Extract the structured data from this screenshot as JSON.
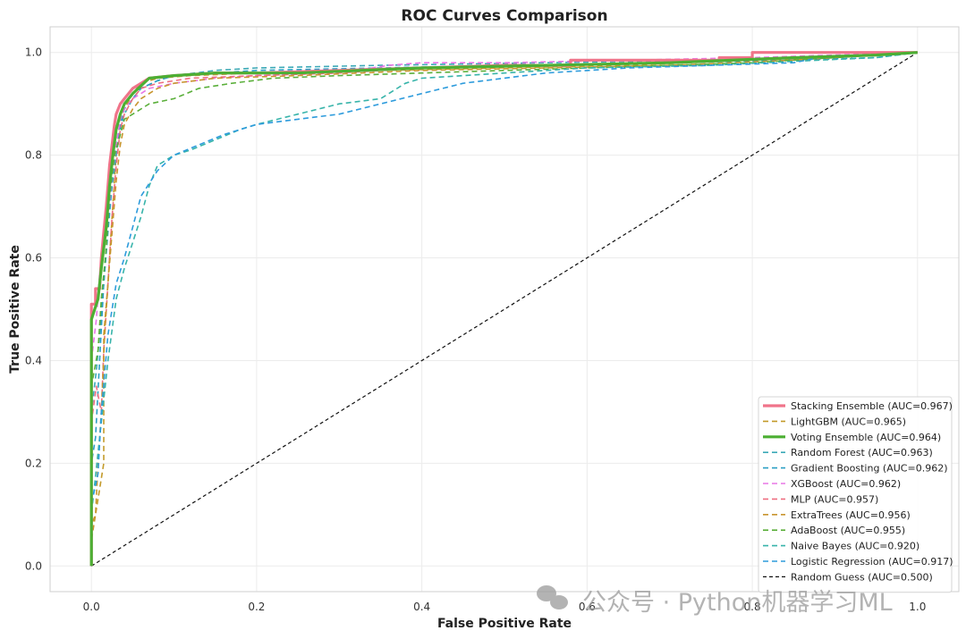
{
  "watermark": "公众号 · Python机器学习ML",
  "chart_data": {
    "type": "line",
    "title": "ROC Curves Comparison",
    "xlabel": "False Positive Rate",
    "ylabel": "True Positive Rate",
    "xlim": [
      -0.05,
      1.05
    ],
    "ylim": [
      -0.05,
      1.05
    ],
    "xticks": [
      0.0,
      0.2,
      0.4,
      0.6,
      0.8,
      1.0
    ],
    "yticks": [
      0.0,
      0.2,
      0.4,
      0.6,
      0.8,
      1.0
    ],
    "grid": true,
    "legend_position": "lower right",
    "series": [
      {
        "name": "Stacking Ensemble (AUC=0.967)",
        "color": "#f0748a",
        "style": "solid",
        "width": 3.2,
        "points": [
          [
            0,
            0
          ],
          [
            0,
            0.51
          ],
          [
            0.005,
            0.51
          ],
          [
            0.005,
            0.54
          ],
          [
            0.01,
            0.54
          ],
          [
            0.012,
            0.6
          ],
          [
            0.015,
            0.65
          ],
          [
            0.018,
            0.7
          ],
          [
            0.02,
            0.74
          ],
          [
            0.022,
            0.78
          ],
          [
            0.025,
            0.82
          ],
          [
            0.028,
            0.86
          ],
          [
            0.03,
            0.88
          ],
          [
            0.035,
            0.9
          ],
          [
            0.04,
            0.91
          ],
          [
            0.045,
            0.92
          ],
          [
            0.05,
            0.93
          ],
          [
            0.06,
            0.94
          ],
          [
            0.07,
            0.95
          ],
          [
            0.1,
            0.955
          ],
          [
            0.15,
            0.96
          ],
          [
            0.2,
            0.96
          ],
          [
            0.3,
            0.965
          ],
          [
            0.4,
            0.97
          ],
          [
            0.5,
            0.975
          ],
          [
            0.58,
            0.975
          ],
          [
            0.58,
            0.985
          ],
          [
            0.7,
            0.985
          ],
          [
            0.76,
            0.985
          ],
          [
            0.76,
            0.99
          ],
          [
            0.8,
            0.99
          ],
          [
            0.8,
            1.0
          ],
          [
            1.0,
            1.0
          ]
        ]
      },
      {
        "name": "LightGBM (AUC=0.965)",
        "color": "#c39a2a",
        "style": "dashed",
        "width": 1.6,
        "points": [
          [
            0,
            0
          ],
          [
            0,
            0.08
          ],
          [
            0.005,
            0.1
          ],
          [
            0.01,
            0.15
          ],
          [
            0.015,
            0.2
          ],
          [
            0.015,
            0.45
          ],
          [
            0.02,
            0.55
          ],
          [
            0.025,
            0.68
          ],
          [
            0.03,
            0.8
          ],
          [
            0.035,
            0.87
          ],
          [
            0.04,
            0.89
          ],
          [
            0.05,
            0.92
          ],
          [
            0.06,
            0.94
          ],
          [
            0.08,
            0.95
          ],
          [
            0.12,
            0.955
          ],
          [
            0.2,
            0.96
          ],
          [
            0.35,
            0.965
          ],
          [
            0.5,
            0.97
          ],
          [
            0.65,
            0.975
          ],
          [
            0.8,
            0.985
          ],
          [
            0.9,
            0.99
          ],
          [
            1.0,
            1.0
          ]
        ]
      },
      {
        "name": "Voting Ensemble (AUC=0.964)",
        "color": "#4caf33",
        "style": "solid",
        "width": 3.2,
        "points": [
          [
            0,
            0
          ],
          [
            0,
            0.48
          ],
          [
            0.008,
            0.52
          ],
          [
            0.012,
            0.58
          ],
          [
            0.018,
            0.66
          ],
          [
            0.022,
            0.74
          ],
          [
            0.026,
            0.8
          ],
          [
            0.03,
            0.85
          ],
          [
            0.035,
            0.88
          ],
          [
            0.04,
            0.9
          ],
          [
            0.05,
            0.92
          ],
          [
            0.06,
            0.935
          ],
          [
            0.07,
            0.95
          ],
          [
            0.1,
            0.955
          ],
          [
            0.15,
            0.96
          ],
          [
            0.25,
            0.96
          ],
          [
            0.4,
            0.97
          ],
          [
            0.55,
            0.975
          ],
          [
            0.7,
            0.98
          ],
          [
            0.85,
            0.99
          ],
          [
            0.95,
            0.995
          ],
          [
            1.0,
            1.0
          ]
        ]
      },
      {
        "name": "Random Forest (AUC=0.963)",
        "color": "#3ba9b7",
        "style": "dashed",
        "width": 1.6,
        "points": [
          [
            0,
            0
          ],
          [
            0,
            0.3
          ],
          [
            0.006,
            0.38
          ],
          [
            0.01,
            0.45
          ],
          [
            0.015,
            0.55
          ],
          [
            0.02,
            0.65
          ],
          [
            0.025,
            0.74
          ],
          [
            0.03,
            0.8
          ],
          [
            0.035,
            0.85
          ],
          [
            0.04,
            0.88
          ],
          [
            0.05,
            0.91
          ],
          [
            0.06,
            0.93
          ],
          [
            0.08,
            0.945
          ],
          [
            0.1,
            0.955
          ],
          [
            0.15,
            0.965
          ],
          [
            0.2,
            0.97
          ],
          [
            0.35,
            0.975
          ],
          [
            0.55,
            0.98
          ],
          [
            0.75,
            0.985
          ],
          [
            0.9,
            0.99
          ],
          [
            1.0,
            1.0
          ]
        ]
      },
      {
        "name": "Gradient Boosting (AUC=0.962)",
        "color": "#2b9fc4",
        "style": "dashed",
        "width": 1.6,
        "points": [
          [
            0,
            0
          ],
          [
            0,
            0.2
          ],
          [
            0.005,
            0.25
          ],
          [
            0.01,
            0.4
          ],
          [
            0.015,
            0.55
          ],
          [
            0.02,
            0.66
          ],
          [
            0.025,
            0.75
          ],
          [
            0.03,
            0.82
          ],
          [
            0.035,
            0.86
          ],
          [
            0.04,
            0.89
          ],
          [
            0.05,
            0.91
          ],
          [
            0.06,
            0.93
          ],
          [
            0.08,
            0.945
          ],
          [
            0.1,
            0.955
          ],
          [
            0.2,
            0.965
          ],
          [
            0.35,
            0.97
          ],
          [
            0.5,
            0.975
          ],
          [
            0.7,
            0.98
          ],
          [
            0.85,
            0.985
          ],
          [
            0.95,
            0.99
          ],
          [
            1.0,
            1.0
          ]
        ]
      },
      {
        "name": "XGBoost (AUC=0.962)",
        "color": "#e876e6",
        "style": "dashed",
        "width": 1.6,
        "points": [
          [
            0,
            0
          ],
          [
            0,
            0.4
          ],
          [
            0.006,
            0.48
          ],
          [
            0.01,
            0.57
          ],
          [
            0.015,
            0.62
          ],
          [
            0.02,
            0.68
          ],
          [
            0.025,
            0.76
          ],
          [
            0.03,
            0.82
          ],
          [
            0.035,
            0.87
          ],
          [
            0.04,
            0.89
          ],
          [
            0.05,
            0.91
          ],
          [
            0.07,
            0.93
          ],
          [
            0.1,
            0.94
          ],
          [
            0.15,
            0.95
          ],
          [
            0.2,
            0.955
          ],
          [
            0.3,
            0.96
          ],
          [
            0.36,
            0.975
          ],
          [
            0.4,
            0.98
          ],
          [
            0.5,
            0.98
          ],
          [
            0.65,
            0.985
          ],
          [
            0.8,
            0.99
          ],
          [
            1.0,
            1.0
          ]
        ]
      },
      {
        "name": "MLP (AUC=0.957)",
        "color": "#ee6f80",
        "style": "dashed",
        "width": 1.6,
        "points": [
          [
            0,
            0
          ],
          [
            0,
            0.28
          ],
          [
            0.006,
            0.35
          ],
          [
            0.012,
            0.3
          ],
          [
            0.015,
            0.42
          ],
          [
            0.02,
            0.55
          ],
          [
            0.025,
            0.68
          ],
          [
            0.03,
            0.78
          ],
          [
            0.035,
            0.85
          ],
          [
            0.04,
            0.88
          ],
          [
            0.05,
            0.91
          ],
          [
            0.06,
            0.93
          ],
          [
            0.08,
            0.94
          ],
          [
            0.12,
            0.95
          ],
          [
            0.2,
            0.955
          ],
          [
            0.3,
            0.96
          ],
          [
            0.4,
            0.97
          ],
          [
            0.55,
            0.975
          ],
          [
            0.7,
            0.98
          ],
          [
            0.85,
            0.99
          ],
          [
            1.0,
            1.0
          ]
        ]
      },
      {
        "name": "ExtraTrees (AUC=0.956)",
        "color": "#c8952e",
        "style": "dashed",
        "width": 1.6,
        "points": [
          [
            0,
            0
          ],
          [
            0,
            0.05
          ],
          [
            0.005,
            0.1
          ],
          [
            0.008,
            0.2
          ],
          [
            0.012,
            0.3
          ],
          [
            0.016,
            0.45
          ],
          [
            0.02,
            0.55
          ],
          [
            0.025,
            0.65
          ],
          [
            0.03,
            0.75
          ],
          [
            0.035,
            0.82
          ],
          [
            0.04,
            0.86
          ],
          [
            0.05,
            0.89
          ],
          [
            0.06,
            0.91
          ],
          [
            0.08,
            0.93
          ],
          [
            0.1,
            0.94
          ],
          [
            0.15,
            0.95
          ],
          [
            0.25,
            0.955
          ],
          [
            0.4,
            0.965
          ],
          [
            0.55,
            0.97
          ],
          [
            0.7,
            0.975
          ],
          [
            0.85,
            0.985
          ],
          [
            1.0,
            1.0
          ]
        ]
      },
      {
        "name": "AdaBoost (AUC=0.955)",
        "color": "#5aaf3a",
        "style": "dashed",
        "width": 1.6,
        "points": [
          [
            0,
            0
          ],
          [
            0,
            0.35
          ],
          [
            0.008,
            0.42
          ],
          [
            0.012,
            0.52
          ],
          [
            0.018,
            0.62
          ],
          [
            0.022,
            0.72
          ],
          [
            0.028,
            0.8
          ],
          [
            0.035,
            0.84
          ],
          [
            0.04,
            0.87
          ],
          [
            0.05,
            0.88
          ],
          [
            0.07,
            0.9
          ],
          [
            0.1,
            0.91
          ],
          [
            0.13,
            0.93
          ],
          [
            0.17,
            0.94
          ],
          [
            0.22,
            0.95
          ],
          [
            0.3,
            0.955
          ],
          [
            0.4,
            0.96
          ],
          [
            0.5,
            0.965
          ],
          [
            0.6,
            0.97
          ],
          [
            0.7,
            0.975
          ],
          [
            0.8,
            0.98
          ],
          [
            0.9,
            0.99
          ],
          [
            1.0,
            1.0
          ]
        ]
      },
      {
        "name": "Naive Bayes (AUC=0.920)",
        "color": "#38b4aa",
        "style": "dashed",
        "width": 1.6,
        "points": [
          [
            0,
            0
          ],
          [
            0,
            0.1
          ],
          [
            0.01,
            0.25
          ],
          [
            0.02,
            0.4
          ],
          [
            0.03,
            0.52
          ],
          [
            0.04,
            0.58
          ],
          [
            0.05,
            0.63
          ],
          [
            0.06,
            0.68
          ],
          [
            0.07,
            0.74
          ],
          [
            0.08,
            0.78
          ],
          [
            0.1,
            0.8
          ],
          [
            0.12,
            0.81
          ],
          [
            0.15,
            0.83
          ],
          [
            0.18,
            0.85
          ],
          [
            0.2,
            0.86
          ],
          [
            0.25,
            0.88
          ],
          [
            0.3,
            0.9
          ],
          [
            0.35,
            0.91
          ],
          [
            0.38,
            0.94
          ],
          [
            0.4,
            0.95
          ],
          [
            0.5,
            0.96
          ],
          [
            0.6,
            0.97
          ],
          [
            0.75,
            0.975
          ],
          [
            0.88,
            0.985
          ],
          [
            0.95,
            0.99
          ],
          [
            1.0,
            1.0
          ]
        ]
      },
      {
        "name": "Logistic Regression (AUC=0.917)",
        "color": "#2d9bdc",
        "style": "dashed",
        "width": 1.6,
        "points": [
          [
            0,
            0
          ],
          [
            0,
            0.12
          ],
          [
            0.008,
            0.18
          ],
          [
            0.012,
            0.3
          ],
          [
            0.02,
            0.45
          ],
          [
            0.03,
            0.55
          ],
          [
            0.04,
            0.6
          ],
          [
            0.05,
            0.66
          ],
          [
            0.06,
            0.72
          ],
          [
            0.08,
            0.77
          ],
          [
            0.1,
            0.8
          ],
          [
            0.13,
            0.82
          ],
          [
            0.16,
            0.84
          ],
          [
            0.2,
            0.86
          ],
          [
            0.25,
            0.87
          ],
          [
            0.3,
            0.88
          ],
          [
            0.35,
            0.9
          ],
          [
            0.4,
            0.92
          ],
          [
            0.45,
            0.94
          ],
          [
            0.55,
            0.96
          ],
          [
            0.65,
            0.97
          ],
          [
            0.75,
            0.975
          ],
          [
            0.85,
            0.98
          ],
          [
            0.88,
            0.99
          ],
          [
            0.95,
            0.995
          ],
          [
            1.0,
            1.0
          ]
        ]
      },
      {
        "name": "Random Guess (AUC=0.500)",
        "color": "#111111",
        "style": "dashed",
        "width": 1.2,
        "points": [
          [
            0,
            0
          ],
          [
            1.0,
            1.0
          ]
        ]
      }
    ]
  }
}
